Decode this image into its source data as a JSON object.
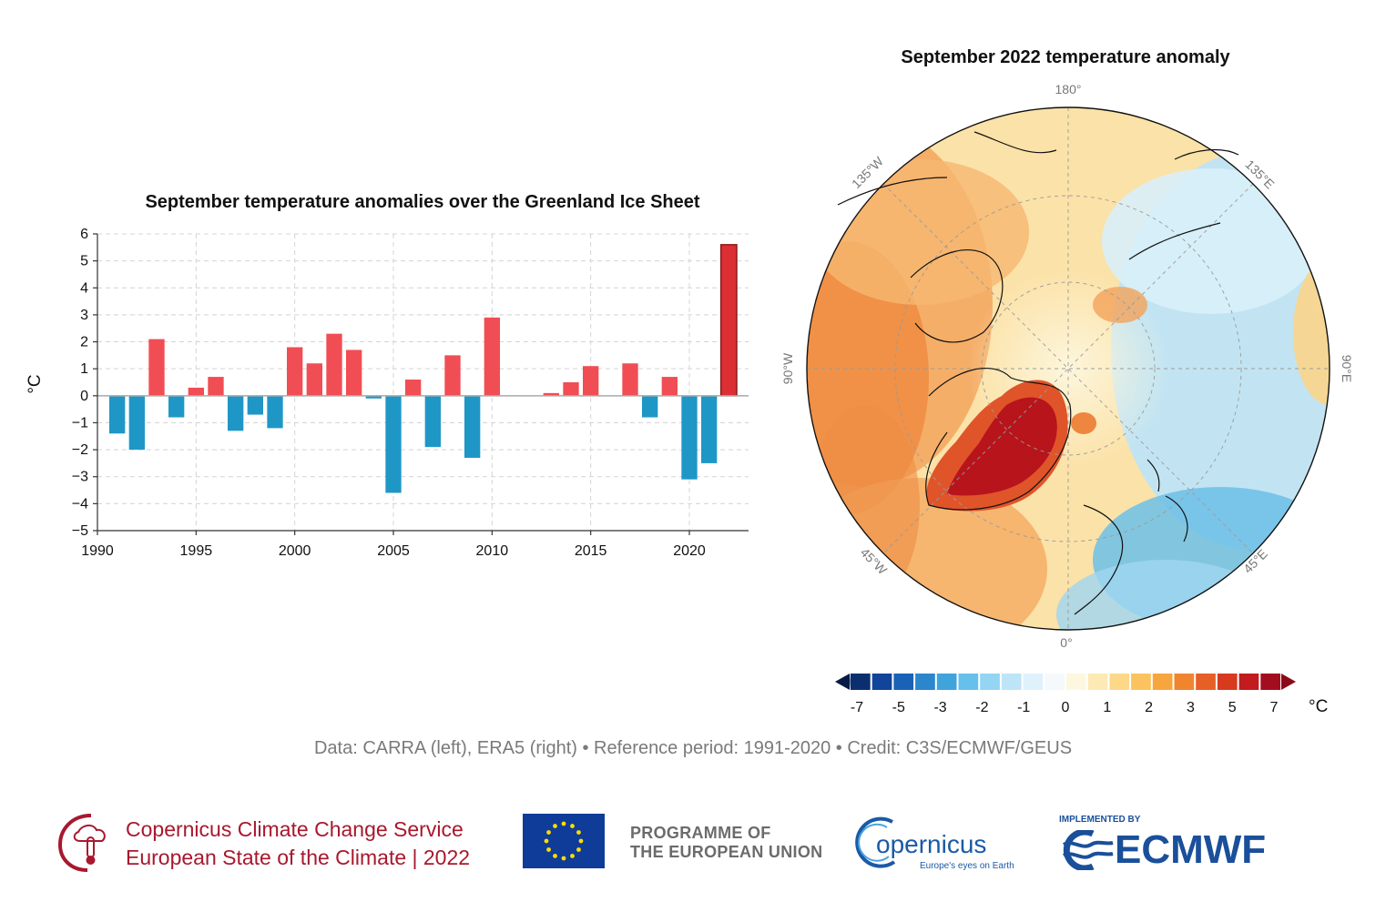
{
  "chart_data": [
    {
      "type": "bar",
      "title": "September temperature anomalies over the Greenland Ice Sheet",
      "ylabel": "°C",
      "xlabel": "",
      "ylim": [
        -5,
        6
      ],
      "yticks": [
        "6",
        "5",
        "4",
        "3",
        "2",
        "1",
        "0",
        "−1",
        "−2",
        "−3",
        "−4",
        "−5"
      ],
      "ytick_values": [
        6,
        5,
        4,
        3,
        2,
        1,
        0,
        -1,
        -2,
        -3,
        -4,
        -5
      ],
      "xticks": [
        "1990",
        "1995",
        "2000",
        "2005",
        "2010",
        "2015",
        "2020"
      ],
      "xtick_values": [
        1990,
        1995,
        2000,
        2005,
        2010,
        2015,
        2020
      ],
      "xlim": [
        1990,
        2023
      ],
      "x": [
        1991,
        1992,
        1993,
        1994,
        1995,
        1996,
        1997,
        1998,
        1999,
        2000,
        2001,
        2002,
        2003,
        2004,
        2005,
        2006,
        2007,
        2008,
        2009,
        2010,
        2011,
        2012,
        2013,
        2014,
        2015,
        2016,
        2017,
        2018,
        2019,
        2020,
        2021,
        2022
      ],
      "values": [
        -1.4,
        -2.0,
        2.1,
        -0.8,
        0.3,
        0.7,
        -1.3,
        -0.7,
        -1.2,
        1.8,
        1.2,
        2.3,
        1.7,
        -0.1,
        -3.6,
        0.6,
        -1.9,
        1.5,
        -2.3,
        2.9,
        0.0,
        0.0,
        0.1,
        0.5,
        1.1,
        0.0,
        1.2,
        -0.8,
        0.7,
        -3.1,
        -2.5,
        5.6
      ],
      "highlight": 2022,
      "colors": {
        "positive": "#f04e54",
        "negative": "#1f97c6",
        "highlight": "#dc2f34"
      }
    },
    {
      "type": "heatmap",
      "title": "September 2022 temperature anomaly",
      "projection": "north-polar-stereographic",
      "longitude_labels": [
        "180°",
        "135°E",
        "90°E",
        "45°E",
        "0°",
        "45°W",
        "90°W",
        "135°W"
      ],
      "colorbar": {
        "unit": "°C",
        "tick_labels": [
          "-7",
          "-5",
          "-3",
          "-2",
          "-1",
          "0",
          "1",
          "2",
          "3",
          "5",
          "7"
        ],
        "colors": [
          "#0b2f6e",
          "#12449a",
          "#1a62b5",
          "#2b86cc",
          "#3fa4dc",
          "#67c0ea",
          "#93d5f2",
          "#bde5f7",
          "#dff1fb",
          "#f5f9fb",
          "#fdf7e0",
          "#fde9b4",
          "#fcd888",
          "#fbc35f",
          "#f7a63d",
          "#f1852e",
          "#e65f24",
          "#d73a1f",
          "#c21c1e",
          "#a30e1e"
        ],
        "under_color": "#061a45",
        "over_color": "#8a0a18"
      }
    }
  ],
  "footer": {
    "credits": "Data: CARRA (left), ERA5 (right) • Reference period: 1991-2020 • Credit: C3S/ECMWF/GEUS"
  },
  "logos": {
    "c3s_line1": "Copernicus Climate Change Service",
    "c3s_line2": "European State of the Climate | 2022",
    "eu_line1": "PROGRAMME OF",
    "eu_line2": "THE EUROPEAN UNION",
    "copernicus_word": "opernicus",
    "copernicus_tagline": "Europe's eyes on Earth",
    "ecmwf_implemented": "IMPLEMENTED BY",
    "ecmwf_word": "ECMWF"
  }
}
